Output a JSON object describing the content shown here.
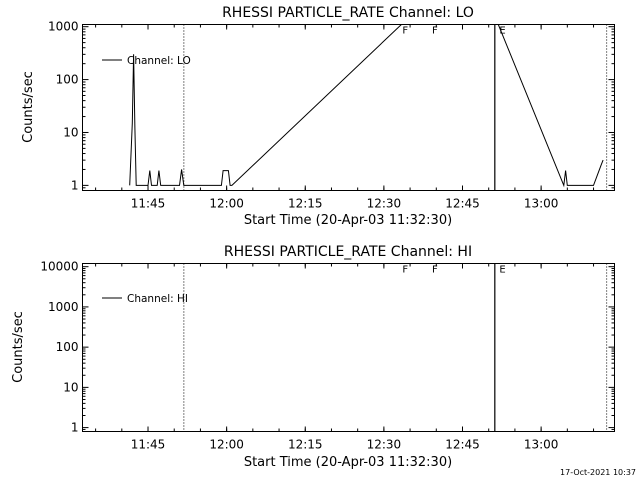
{
  "footer": {
    "timestamp": "17-Oct-2021 10:37"
  },
  "chart_data": [
    {
      "type": "line",
      "title": "RHESSI PARTICLE_RATE Channel: LO",
      "xlabel": "Start Time (20-Apr-03 11:32:30)",
      "ylabel": "Counts/sec",
      "yscale": "log",
      "ylim": [
        0.8,
        1100
      ],
      "xlim": [
        "11:32:30",
        "13:14:00"
      ],
      "x_ticks": [
        "11:45",
        "12:00",
        "12:15",
        "12:30",
        "12:45",
        "13:00"
      ],
      "y_ticks": [
        "1",
        "10",
        "100",
        "1000"
      ],
      "legend": {
        "position": "top-left",
        "entries": [
          "Channel: LO"
        ]
      },
      "series": [
        {
          "name": "Channel: LO",
          "x": [
            "11:41:30",
            "11:42:00",
            "11:42:15",
            "11:42:30",
            "11:42:45",
            "11:43:00",
            "11:45:00",
            "11:45:20",
            "11:45:40",
            "11:46:45",
            "11:47:05",
            "11:47:25",
            "11:51:00",
            "11:51:25",
            "11:51:50",
            "11:59:00",
            "11:59:20",
            "11:59:40",
            "12:00:20",
            "12:00:40",
            "12:01:00",
            "12:33:20",
            "12:33:40",
            "12:38:40",
            "12:39:00",
            "12:51:30",
            "12:51:50",
            "13:04:20",
            "13:04:40",
            "13:05:00",
            "13:10:00",
            "13:10:40",
            "13:11:30",
            "13:11:50"
          ],
          "values": [
            1,
            15,
            300,
            12,
            1,
            1,
            1,
            1.9,
            1,
            1,
            1.9,
            1,
            1,
            2,
            1,
            1,
            1.9,
            1.9,
            1.9,
            1,
            1,
            1100,
            1100,
            1100,
            1100,
            1100,
            1100,
            1,
            1.9,
            1,
            1,
            1.5,
            2.5,
            3
          ]
        }
      ],
      "annotations": [
        {
          "label": "F",
          "x": "12:33:20"
        },
        {
          "label": "F",
          "x": "12:39:00"
        },
        {
          "label": "E",
          "x": "12:51:50"
        }
      ],
      "event_lines": [
        "11:51:50",
        "12:51:10",
        "13:12:30"
      ]
    },
    {
      "type": "line",
      "title": "RHESSI PARTICLE_RATE Channel: HI",
      "xlabel": "Start Time (20-Apr-03 11:32:30)",
      "ylabel": "Counts/sec",
      "yscale": "log",
      "ylim": [
        0.8,
        12000
      ],
      "xlim": [
        "11:32:30",
        "13:14:00"
      ],
      "x_ticks": [
        "11:45",
        "12:00",
        "12:15",
        "12:30",
        "12:45",
        "13:00"
      ],
      "y_ticks": [
        "1",
        "10",
        "100",
        "1000",
        "10000"
      ],
      "legend": {
        "position": "top-left",
        "entries": [
          "Channel: HI"
        ]
      },
      "series": [
        {
          "name": "Channel: HI",
          "x": [
            "12:33:20",
            "12:33:40",
            "12:38:40",
            "12:39:00",
            "12:51:30",
            "12:51:50"
          ],
          "values": [
            12000,
            12000,
            12000,
            12000,
            12000,
            12000
          ]
        }
      ],
      "annotations": [
        {
          "label": "F",
          "x": "12:33:20"
        },
        {
          "label": "F",
          "x": "12:39:00"
        },
        {
          "label": "E",
          "x": "12:51:50"
        }
      ],
      "event_lines": [
        "11:51:50",
        "12:51:10",
        "13:12:30"
      ]
    }
  ]
}
